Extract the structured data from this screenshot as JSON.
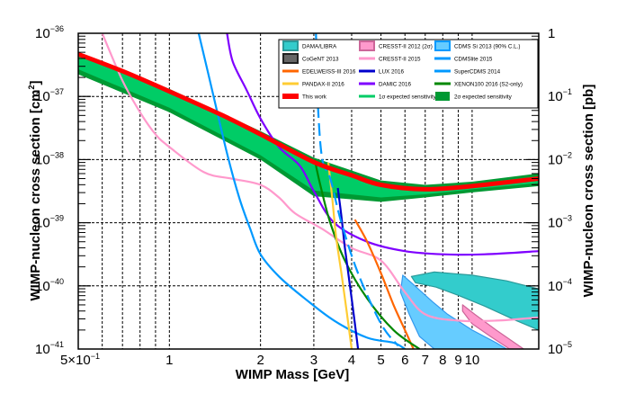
{
  "chart_data": {
    "type": "line",
    "title": "",
    "xlabel": "WIMP Mass [GeV]",
    "ylabel": "WIMP-nucleon cross section [cm²]",
    "ylabel_parts": {
      "main": "WIMP-nucleon cross section [cm",
      "sup": "2",
      "end": "]"
    },
    "ylabel_right": "WIMP-nucleon cross section [pb]",
    "xscale": "log",
    "yscale": "log",
    "xlim": [
      0.5,
      16.6
    ],
    "ylim_log10_cm2": [
      -41,
      -36
    ],
    "ylim_right_log10_pb": [
      -5,
      0
    ],
    "grid": true,
    "legend_position": "top-right",
    "x_ticks": [
      {
        "value": 0.5,
        "base": "5×10",
        "exp": "−1"
      },
      {
        "value": 1,
        "label": "1"
      },
      {
        "value": 2,
        "label": "2"
      },
      {
        "value": 3,
        "label": "3"
      },
      {
        "value": 4,
        "label": "4"
      },
      {
        "value": 5,
        "label": "5"
      },
      {
        "value": 6,
        "label": "6"
      },
      {
        "value": 7,
        "label": "7"
      },
      {
        "value": 8,
        "label": "8"
      },
      {
        "value": 9,
        "label": "9"
      },
      {
        "value": 10,
        "label": "10"
      }
    ],
    "x_grid": [
      0.6,
      0.7,
      0.8,
      0.9,
      1,
      2,
      3,
      4,
      5,
      6,
      7,
      8,
      9,
      10
    ],
    "y_ticks_left": [
      {
        "log10": -36,
        "base": "10",
        "exp": "−36"
      },
      {
        "log10": -37,
        "base": "10",
        "exp": "−37"
      },
      {
        "log10": -38,
        "base": "10",
        "exp": "−38"
      },
      {
        "log10": -39,
        "base": "10",
        "exp": "−39"
      },
      {
        "log10": -40,
        "base": "10",
        "exp": "−40"
      },
      {
        "log10": -41,
        "base": "10",
        "exp": "−41"
      }
    ],
    "y_ticks_right": [
      {
        "log10": 0,
        "base": "1",
        "exp": ""
      },
      {
        "log10": -1,
        "base": "10",
        "exp": "−1"
      },
      {
        "log10": -2,
        "base": "10",
        "exp": "−2"
      },
      {
        "log10": -3,
        "base": "10",
        "exp": "−3"
      },
      {
        "log10": -4,
        "base": "10",
        "exp": "−4"
      },
      {
        "log10": -5,
        "base": "10",
        "exp": "−5"
      }
    ],
    "regions": [
      {
        "name": "DAMA/LIBRA",
        "color": "#33cccc",
        "stroke": "#2a9a9a",
        "points": [
          [
            6.3,
            -39.85
          ],
          [
            7.5,
            -39.78
          ],
          [
            10,
            -39.83
          ],
          [
            13,
            -39.92
          ],
          [
            16.6,
            -40.05
          ],
          [
            16.6,
            -40.7
          ],
          [
            14,
            -40.55
          ],
          [
            11,
            -40.32
          ],
          [
            9,
            -40.15
          ],
          [
            7.6,
            -40.02
          ],
          [
            6.5,
            -39.95
          ]
        ]
      },
      {
        "name": "CoGeNT 2013",
        "color": "#555555",
        "stroke": "#222222",
        "points": [
          [
            7.5,
            -40.57
          ],
          [
            8.2,
            -40.62
          ],
          [
            9,
            -40.72
          ],
          [
            9.6,
            -40.85
          ],
          [
            8.8,
            -40.86
          ],
          [
            7.9,
            -40.72
          ],
          [
            7.4,
            -40.6
          ]
        ]
      },
      {
        "name": "CRESST-II 2012 (2σ)",
        "color": "#ff99cc",
        "stroke": "#cc6699",
        "points": [
          [
            9.3,
            -40.3
          ],
          [
            10.2,
            -40.45
          ],
          [
            12,
            -40.7
          ],
          [
            14.5,
            -40.97
          ],
          [
            15,
            -41.02
          ],
          [
            13.3,
            -41.0
          ],
          [
            11.5,
            -40.8
          ],
          [
            10,
            -40.6
          ],
          [
            9.3,
            -40.4
          ]
        ]
      },
      {
        "name": "CDMS Si 2013 (90% C.L.)",
        "color": "#66ccff",
        "stroke": "#3399ee",
        "points": [
          [
            5.9,
            -39.83
          ],
          [
            6.3,
            -39.95
          ],
          [
            7.4,
            -40.25
          ],
          [
            8.3,
            -40.45
          ],
          [
            10,
            -40.7
          ],
          [
            12,
            -40.9
          ],
          [
            13,
            -41.0
          ],
          [
            7.5,
            -41.0
          ],
          [
            6.7,
            -40.8
          ],
          [
            6.2,
            -40.45
          ],
          [
            5.8,
            -40.1
          ]
        ]
      }
    ],
    "band_2sigma": {
      "name": "2σ expected sensitivity",
      "color": "#009933",
      "upper": [
        [
          0.5,
          -36.3
        ],
        [
          1,
          -36.88
        ],
        [
          2,
          -37.55
        ],
        [
          3,
          -37.97
        ],
        [
          5,
          -38.33
        ],
        [
          7,
          -38.4
        ],
        [
          10,
          -38.35
        ],
        [
          16.6,
          -38.22
        ]
      ],
      "lower": [
        [
          0.5,
          -36.65
        ],
        [
          1,
          -37.25
        ],
        [
          2,
          -38.0
        ],
        [
          3,
          -38.58
        ],
        [
          5,
          -38.67
        ],
        [
          7,
          -38.6
        ],
        [
          10,
          -38.52
        ],
        [
          16.6,
          -38.42
        ]
      ]
    },
    "band_1sigma": {
      "name": "1σ expected sensitivity",
      "color": "#00cc66",
      "upper": [
        [
          0.5,
          -36.35
        ],
        [
          1,
          -36.92
        ],
        [
          2,
          -37.6
        ],
        [
          3,
          -38.02
        ],
        [
          5,
          -38.38
        ],
        [
          7,
          -38.45
        ],
        [
          10,
          -38.39
        ],
        [
          16.6,
          -38.26
        ]
      ],
      "lower": [
        [
          0.5,
          -36.57
        ],
        [
          1,
          -37.18
        ],
        [
          2,
          -37.93
        ],
        [
          3,
          -38.49
        ],
        [
          5,
          -38.6
        ],
        [
          7,
          -38.55
        ],
        [
          10,
          -38.47
        ],
        [
          16.6,
          -38.37
        ]
      ]
    },
    "series": [
      {
        "name": "This work",
        "color": "#ff0000",
        "width": 5,
        "dash": false,
        "points": [
          [
            0.5,
            -36.33
          ],
          [
            0.7,
            -36.6
          ],
          [
            1,
            -36.92
          ],
          [
            1.5,
            -37.3
          ],
          [
            2,
            -37.6
          ],
          [
            3,
            -38.04
          ],
          [
            4,
            -38.25
          ],
          [
            5,
            -38.4
          ],
          [
            7,
            -38.47
          ],
          [
            10,
            -38.42
          ],
          [
            16.6,
            -38.3
          ]
        ]
      },
      {
        "name": "CRESST-II 2015",
        "color": "#ff99cc",
        "width": 2.2,
        "dash": false,
        "points": [
          [
            0.6,
            -36.0
          ],
          [
            0.7,
            -36.75
          ],
          [
            0.8,
            -37.25
          ],
          [
            0.9,
            -37.6
          ],
          [
            1,
            -37.8
          ],
          [
            1.3,
            -38.2
          ],
          [
            1.6,
            -38.3
          ],
          [
            2,
            -38.4
          ],
          [
            2.3,
            -38.6
          ],
          [
            2.6,
            -38.85
          ],
          [
            3.2,
            -39.1
          ],
          [
            4,
            -39.4
          ],
          [
            5,
            -39.6
          ],
          [
            6,
            -40.1
          ],
          [
            7,
            -40.45
          ],
          [
            9,
            -40.55
          ],
          [
            12,
            -40.55
          ],
          [
            16.6,
            -40.5
          ]
        ]
      },
      {
        "name": "CDMSlite 2015",
        "color": "#0099ff",
        "width": 2.2,
        "dash": false,
        "points": [
          [
            1.25,
            -36.0
          ],
          [
            1.4,
            -37.0
          ],
          [
            1.55,
            -37.9
          ],
          [
            1.7,
            -38.6
          ],
          [
            1.85,
            -39.1
          ],
          [
            2.0,
            -39.5
          ],
          [
            2.3,
            -39.85
          ],
          [
            2.8,
            -40.2
          ],
          [
            3.5,
            -40.55
          ],
          [
            4.5,
            -40.82
          ],
          [
            5.5,
            -40.9
          ],
          [
            6,
            -41.0
          ]
        ]
      },
      {
        "name": "SuperCDMS 2014",
        "color": "#0099ff",
        "width": 2.2,
        "dash": true,
        "points": [
          [
            3.05,
            -36.0
          ],
          [
            3.1,
            -37.2
          ],
          [
            3.2,
            -38.0
          ],
          [
            3.4,
            -38.3
          ],
          [
            3.7,
            -39.0
          ],
          [
            4.2,
            -39.8
          ],
          [
            5,
            -40.6
          ],
          [
            5.7,
            -40.95
          ]
        ]
      },
      {
        "name": "DAMIC 2016",
        "color": "#7f00ff",
        "width": 2.2,
        "dash": false,
        "points": [
          [
            1.55,
            -36.0
          ],
          [
            1.62,
            -36.45
          ],
          [
            1.8,
            -36.9
          ],
          [
            2.0,
            -37.35
          ],
          [
            2.3,
            -37.8
          ],
          [
            2.7,
            -38.1
          ],
          [
            3,
            -38.5
          ],
          [
            3.5,
            -39.0
          ],
          [
            4.5,
            -39.3
          ],
          [
            6,
            -39.45
          ],
          [
            8,
            -39.5
          ],
          [
            11,
            -39.5
          ],
          [
            16.6,
            -39.45
          ]
        ]
      },
      {
        "name": "LUX 2016",
        "color": "#0000cc",
        "width": 2.2,
        "dash": false,
        "points": [
          [
            3.6,
            -38.45
          ],
          [
            3.7,
            -38.9
          ],
          [
            3.8,
            -39.4
          ],
          [
            3.95,
            -40.0
          ],
          [
            4.1,
            -40.6
          ],
          [
            4.2,
            -41.0
          ]
        ]
      },
      {
        "name": "PANDAX-II 2016",
        "color": "#ffcc33",
        "width": 2.2,
        "dash": false,
        "points": [
          [
            3.35,
            -38.05
          ],
          [
            3.45,
            -38.6
          ],
          [
            3.55,
            -39.2
          ],
          [
            3.7,
            -39.8
          ],
          [
            3.85,
            -40.4
          ],
          [
            4.0,
            -41.0
          ]
        ]
      },
      {
        "name": "EDELWEISS-III 2016",
        "color": "#ff6600",
        "width": 2.2,
        "dash": false,
        "points": [
          [
            4.1,
            -38.95
          ],
          [
            4.5,
            -39.3
          ],
          [
            5,
            -39.8
          ],
          [
            5.5,
            -40.3
          ],
          [
            6,
            -40.7
          ],
          [
            6.4,
            -41.0
          ]
        ]
      },
      {
        "name": "XENON100 2016 (S2-only)",
        "color": "#008800",
        "width": 2.2,
        "dash": false,
        "points": [
          [
            3.02,
            -38.0
          ],
          [
            3.15,
            -38.4
          ],
          [
            3.4,
            -39.0
          ],
          [
            3.8,
            -39.6
          ],
          [
            4.5,
            -40.2
          ],
          [
            5.5,
            -40.7
          ],
          [
            6.7,
            -41.0
          ]
        ]
      }
    ],
    "legend": [
      {
        "label": "DAMA/LIBRA",
        "color": "#33cccc",
        "kind": "box",
        "stroke": "#2a9a9a"
      },
      {
        "label": "CRESST-II 2012 (2σ)",
        "color": "#ff99cc",
        "kind": "box",
        "stroke": "#cc6699"
      },
      {
        "label": "CDMS Si 2013 (90% C.L.)",
        "color": "#66ccff",
        "kind": "box",
        "stroke": "#0099ff"
      },
      {
        "label": "CoGeNT 2013",
        "color": "#666666",
        "kind": "box",
        "stroke": "#222222"
      },
      {
        "label": "CRESST-II 2015",
        "color": "#ff99cc",
        "kind": "line"
      },
      {
        "label": "CDMSlite 2015",
        "color": "#0099ff",
        "kind": "line"
      },
      {
        "label": "EDELWEISS-III 2016",
        "color": "#ff6600",
        "kind": "line"
      },
      {
        "label": "LUX 2016",
        "color": "#0000cc",
        "kind": "line"
      },
      {
        "label": "SuperCDMS 2014",
        "color": "#0099ff",
        "kind": "line"
      },
      {
        "label": "PANDAX-II 2016",
        "color": "#ffcc33",
        "kind": "line"
      },
      {
        "label": "DAMIC 2016",
        "color": "#7f00ff",
        "kind": "line"
      },
      {
        "label": "XENON100 2016 (S2-only)",
        "color": "#008800",
        "kind": "line"
      },
      {
        "label": "This work",
        "color": "#ff0000",
        "kind": "thick"
      },
      {
        "label": "1σ expected sensitivity",
        "color": "#00cc66",
        "kind": "line"
      },
      {
        "label": "2σ expected sensitivity",
        "color": "#009933",
        "kind": "bigbox"
      }
    ]
  }
}
